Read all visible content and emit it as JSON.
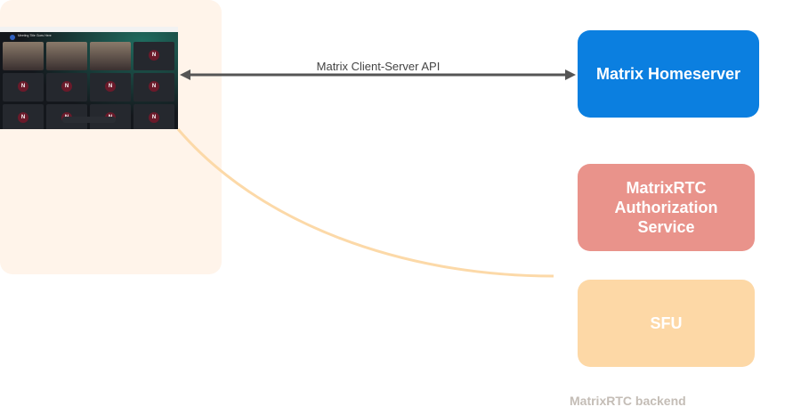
{
  "screenshot": {
    "meeting_title": "Meeting Title Goes Here",
    "tile_initial": "N"
  },
  "connection": {
    "label": "Matrix Client-Server API",
    "arrow_color": "#555555",
    "curve_color": "#fcd9a8"
  },
  "homeserver": {
    "label": "Matrix Homeserver",
    "color": "#0b7fe0"
  },
  "backend": {
    "label": "MatrixRTC backend",
    "auth_service": {
      "label_lines": [
        "MatrixRTC",
        "Authorization",
        "Service"
      ],
      "color": "#e9938b"
    },
    "sfu": {
      "label": "SFU",
      "color": "#fdd8a6"
    }
  }
}
